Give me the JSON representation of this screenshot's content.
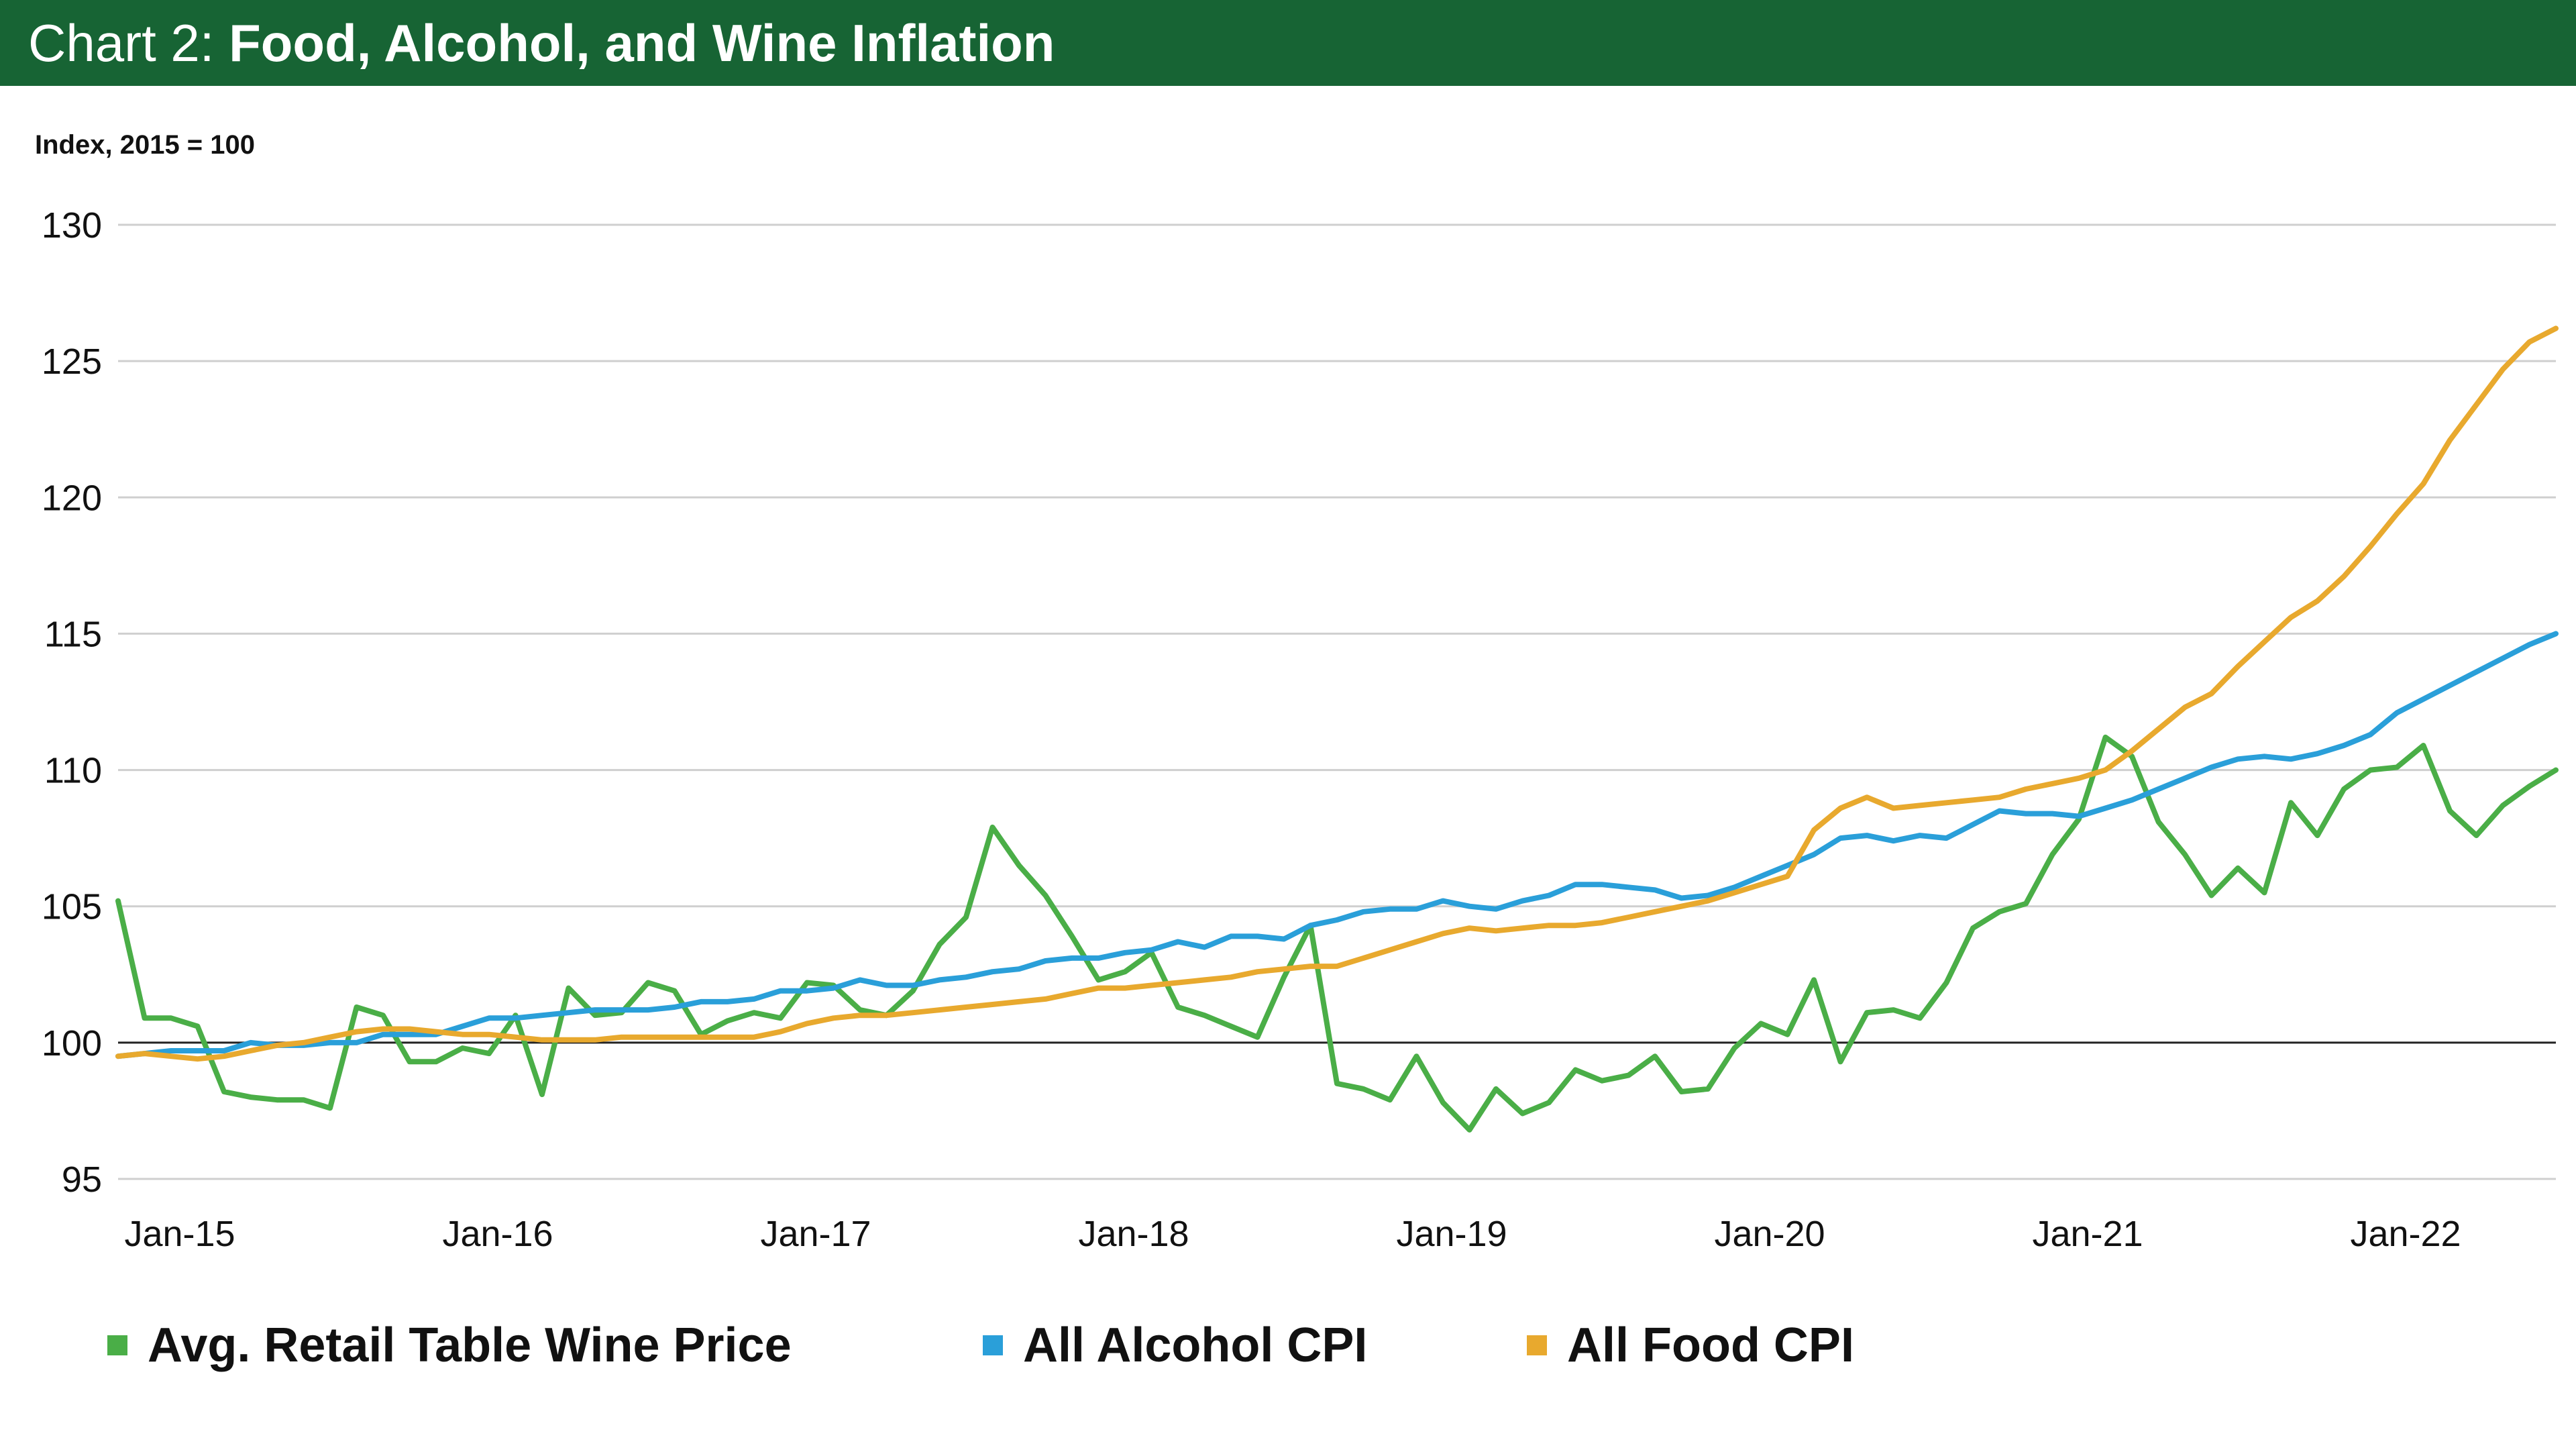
{
  "header": {
    "prefix": "Chart 2: ",
    "title": "Food, Alcohol, and Wine Inflation",
    "background": "#176434"
  },
  "chart_data": {
    "type": "line",
    "ylabel": "Index, 2015 = 100",
    "xlabel": "",
    "ylim": [
      95,
      130
    ],
    "yticks": [
      "130",
      "125",
      "120",
      "115",
      "110",
      "105",
      "100",
      "95"
    ],
    "ytick_values": [
      130,
      125,
      120,
      115,
      110,
      105,
      100,
      95
    ],
    "xticks": [
      "Jan-15",
      "Jan-16",
      "Jan-17",
      "Jan-18",
      "Jan-19",
      "Jan-20",
      "Jan-21",
      "Jan-22"
    ],
    "x_start": "Jan-15",
    "x_end": "Jun-22",
    "grid": true,
    "baseline": 100,
    "legend_position": "bottom",
    "series": [
      {
        "name": "Avg. Retail Table Wine Price",
        "color": "#4aae47",
        "values": [
          105.2,
          100.9,
          100.9,
          100.6,
          98.2,
          98.0,
          97.9,
          97.9,
          97.6,
          101.3,
          101.0,
          99.3,
          99.3,
          99.8,
          99.6,
          101.0,
          98.1,
          102.0,
          101.0,
          101.1,
          102.2,
          101.9,
          100.3,
          100.8,
          101.1,
          100.9,
          102.2,
          102.1,
          101.2,
          101.0,
          101.9,
          103.6,
          104.6,
          107.9,
          106.5,
          105.4,
          103.9,
          102.3,
          102.6,
          103.3,
          101.3,
          101.0,
          100.6,
          100.2,
          102.4,
          104.3,
          98.5,
          98.3,
          97.9,
          99.5,
          97.8,
          96.8,
          98.3,
          97.4,
          97.8,
          99.0,
          98.6,
          98.8,
          99.5,
          98.2,
          98.3,
          99.8,
          100.7,
          100.3,
          102.3,
          99.3,
          101.1,
          101.2,
          100.9,
          102.2,
          104.2,
          104.8,
          105.1,
          106.9,
          108.2,
          111.2,
          110.5,
          108.1,
          106.9,
          105.4,
          106.4,
          105.5,
          108.8,
          107.6,
          109.3,
          110.0,
          110.1,
          110.9,
          108.5,
          107.6,
          108.7,
          109.4,
          110.0
        ]
      },
      {
        "name": "All Alcohol CPI",
        "color": "#2a9fd9",
        "values": [
          99.5,
          99.6,
          99.7,
          99.7,
          99.7,
          100.0,
          99.9,
          99.9,
          100.0,
          100.0,
          100.3,
          100.3,
          100.3,
          100.6,
          100.9,
          100.9,
          101.0,
          101.1,
          101.2,
          101.2,
          101.2,
          101.3,
          101.5,
          101.5,
          101.6,
          101.9,
          101.9,
          102.0,
          102.3,
          102.1,
          102.1,
          102.3,
          102.4,
          102.6,
          102.7,
          103.0,
          103.1,
          103.1,
          103.3,
          103.4,
          103.7,
          103.5,
          103.9,
          103.9,
          103.8,
          104.3,
          104.5,
          104.8,
          104.9,
          104.9,
          105.2,
          105.0,
          104.9,
          105.2,
          105.4,
          105.8,
          105.8,
          105.7,
          105.6,
          105.3,
          105.4,
          105.7,
          106.1,
          106.5,
          106.9,
          107.5,
          107.6,
          107.4,
          107.6,
          107.5,
          108.0,
          108.5,
          108.4,
          108.4,
          108.3,
          108.6,
          108.9,
          109.3,
          109.7,
          110.1,
          110.4,
          110.5,
          110.4,
          110.6,
          110.9,
          111.3,
          112.1,
          112.6,
          113.1,
          113.6,
          114.1,
          114.6,
          115.0
        ]
      },
      {
        "name": "All Food CPI",
        "color": "#e8a92e",
        "values": [
          99.5,
          99.6,
          99.5,
          99.4,
          99.5,
          99.7,
          99.9,
          100.0,
          100.2,
          100.4,
          100.5,
          100.5,
          100.4,
          100.3,
          100.3,
          100.2,
          100.1,
          100.1,
          100.1,
          100.2,
          100.2,
          100.2,
          100.2,
          100.2,
          100.2,
          100.4,
          100.7,
          100.9,
          101.0,
          101.0,
          101.1,
          101.2,
          101.3,
          101.4,
          101.5,
          101.6,
          101.8,
          102.0,
          102.0,
          102.1,
          102.2,
          102.3,
          102.4,
          102.6,
          102.7,
          102.8,
          102.8,
          103.1,
          103.4,
          103.7,
          104.0,
          104.2,
          104.1,
          104.2,
          104.3,
          104.3,
          104.4,
          104.6,
          104.8,
          105.0,
          105.2,
          105.5,
          105.8,
          106.1,
          107.8,
          108.6,
          109.0,
          108.6,
          108.7,
          108.8,
          108.9,
          109.0,
          109.3,
          109.5,
          109.7,
          110.0,
          110.7,
          111.5,
          112.3,
          112.8,
          113.8,
          114.7,
          115.6,
          116.2,
          117.1,
          118.2,
          119.4,
          120.5,
          122.1,
          123.4,
          124.7,
          125.7,
          126.2
        ]
      }
    ]
  }
}
